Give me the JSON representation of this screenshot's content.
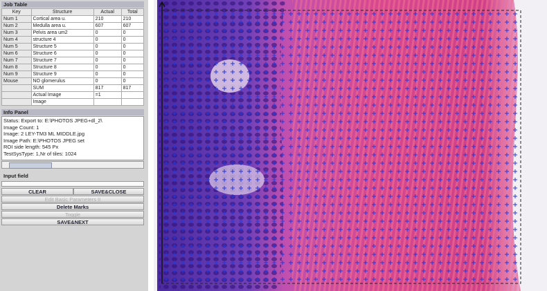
{
  "job_table": {
    "title": "Job Table",
    "columns": [
      "Key",
      "Structure",
      "Actual",
      "Total"
    ],
    "rows": [
      {
        "key": "Num 1",
        "structure": "Cortical area u.",
        "actual": 210,
        "total": 210
      },
      {
        "key": "Num 2",
        "structure": "Medulla area u.",
        "actual": 607,
        "total": 607
      },
      {
        "key": "Num 3",
        "structure": "Pelvis area um2",
        "actual": 0,
        "total": 0
      },
      {
        "key": "Num 4",
        "structure": "structure 4",
        "actual": 0,
        "total": 0
      },
      {
        "key": "Num 5",
        "structure": "Structure 5",
        "actual": 0,
        "total": 0
      },
      {
        "key": "Num 6",
        "structure": "Structure 6",
        "actual": 0,
        "total": 0
      },
      {
        "key": "Num 7",
        "structure": "Structure 7",
        "actual": 0,
        "total": 0
      },
      {
        "key": "Num 8",
        "structure": "Structure 8",
        "actual": 0,
        "total": 0
      },
      {
        "key": "Num 9",
        "structure": "Structure 9",
        "actual": 0,
        "total": 0
      },
      {
        "key": "Mouse",
        "structure": "NO glomerulus",
        "actual": 0,
        "total": 0
      },
      {
        "structure": "SUM",
        "actual": 817,
        "total": 817
      },
      {
        "structure": "Actual Image",
        "actual": "=1"
      },
      {
        "structure": "Image"
      }
    ]
  },
  "info_panel": {
    "title": "Info Panel",
    "lines": [
      "Status: Export to: E:\\PHOTOS JPEG+dl_2\\",
      "Image Count: 1",
      "Image: 2 LEY-TM3 ML MIDDLE.jpg",
      "Image Path: E:\\PHOTOS JPEG set",
      "ROI side length: 545 Px",
      "TestSysType: 1,Nr of tiles: 1024"
    ]
  },
  "input_field": {
    "title": "Input field"
  },
  "buttons": {
    "clear": "CLEAR",
    "save_close": "SAVE&CLOSE",
    "edit_parameters": "Edit Basic Parameters II",
    "delete_marks": "Delete Marks",
    "toggle": "Toggle",
    "save_next": "SAVE&NEXT"
  }
}
